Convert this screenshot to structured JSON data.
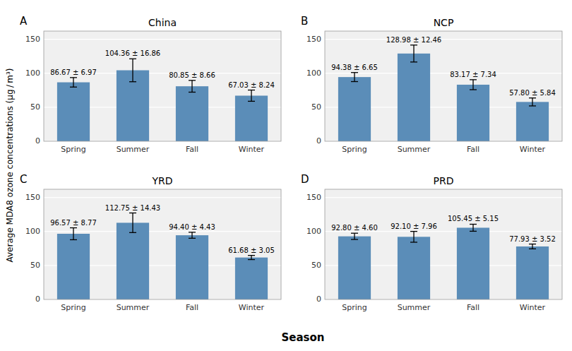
{
  "chart_data": [
    {
      "type": "bar",
      "title": "China",
      "panel_label": "A",
      "categories": [
        "Spring",
        "Summer",
        "Fall",
        "Winter"
      ],
      "values": [
        86.67,
        104.36,
        80.85,
        67.03
      ],
      "errors": [
        6.97,
        16.86,
        8.66,
        8.24
      ],
      "data_labels": true,
      "value_labels": [
        "86.67 ± 6.97",
        "104.36 ± 16.86",
        "80.85 ± 8.66",
        "67.03 ± 8.24"
      ],
      "color": "#5b8db8",
      "ylim": [
        0,
        162
      ],
      "yticks": [
        0,
        50,
        100,
        150
      ],
      "grid": true
    },
    {
      "type": "bar",
      "title": "NCP",
      "panel_label": "B",
      "categories": [
        "Spring",
        "Summer",
        "Fall",
        "Winter"
      ],
      "values": [
        94.38,
        128.98,
        83.17,
        57.8
      ],
      "errors": [
        6.65,
        12.46,
        7.34,
        5.84
      ],
      "data_labels": true,
      "value_labels": [
        "94.38 ± 6.65",
        "128.98 ± 12.46",
        "83.17 ± 7.34",
        "57.80 ± 5.84"
      ],
      "color": "#5b8db8",
      "ylim": [
        0,
        162
      ],
      "yticks": [
        0,
        50,
        100,
        150
      ],
      "grid": true
    },
    {
      "type": "bar",
      "title": "YRD",
      "panel_label": "C",
      "categories": [
        "Spring",
        "Summer",
        "Fall",
        "Winter"
      ],
      "values": [
        96.57,
        112.75,
        94.4,
        61.68
      ],
      "errors": [
        8.77,
        14.43,
        4.43,
        3.05
      ],
      "data_labels": true,
      "value_labels": [
        "96.57 ± 8.77",
        "112.75 ± 14.43",
        "94.40 ± 4.43",
        "61.68 ± 3.05"
      ],
      "color": "#5b8db8",
      "ylim": [
        0,
        162
      ],
      "yticks": [
        0,
        50,
        100,
        150
      ],
      "grid": true
    },
    {
      "type": "bar",
      "title": "PRD",
      "panel_label": "D",
      "categories": [
        "Spring",
        "Summer",
        "Fall",
        "Winter"
      ],
      "values": [
        92.8,
        92.1,
        105.45,
        77.93
      ],
      "errors": [
        4.6,
        7.96,
        5.15,
        3.52
      ],
      "data_labels": true,
      "value_labels": [
        "92.80 ± 4.60",
        "92.10 ± 7.96",
        "105.45 ± 5.15",
        "77.93 ± 3.52"
      ],
      "color": "#5b8db8",
      "ylim": [
        0,
        162
      ],
      "yticks": [
        0,
        50,
        100,
        150
      ],
      "grid": true
    }
  ],
  "ylabel": "Average MDA8 ozone concentrations (μg / m³)",
  "xlabel": "Season"
}
